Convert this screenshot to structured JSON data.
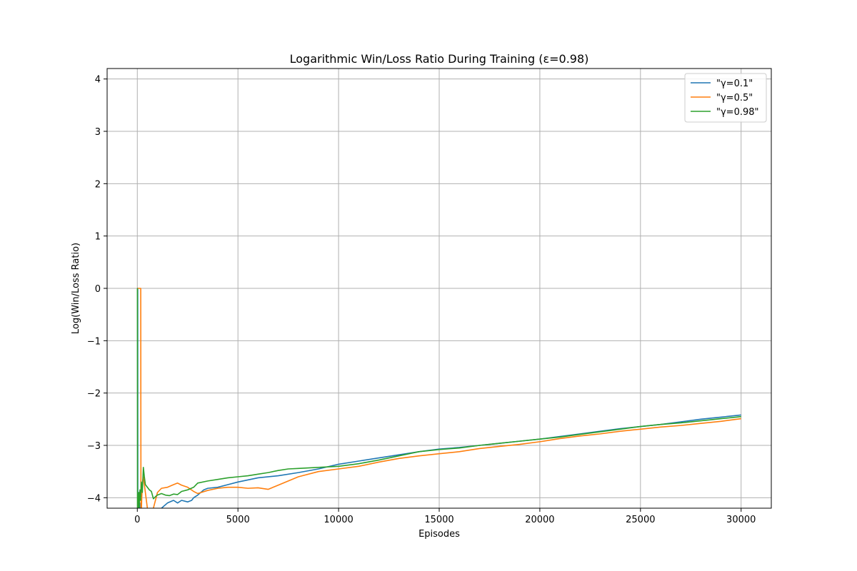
{
  "chart_data": {
    "type": "line",
    "title": "Logarithmic Win/Loss Ratio During Training (ε=0.98)",
    "xlabel": "Episodes",
    "ylabel": "Log(Win/Loss Ratio)",
    "xlim": [
      -1500,
      31500
    ],
    "ylim": [
      -4.2,
      4.2
    ],
    "xticks": [
      0,
      5000,
      10000,
      15000,
      20000,
      25000,
      30000
    ],
    "xtick_labels": [
      "0",
      "5000",
      "10000",
      "15000",
      "20000",
      "25000",
      "30000"
    ],
    "yticks": [
      -4,
      -3,
      -2,
      -1,
      0,
      1,
      2,
      3,
      4
    ],
    "ytick_labels": [
      "−4",
      "−3",
      "−2",
      "−1",
      "0",
      "1",
      "2",
      "3",
      "4"
    ],
    "grid": true,
    "legend_position": "top-right",
    "series": [
      {
        "name": "\"γ=0.1\"",
        "color": "#1f77b4",
        "x": [
          0,
          20,
          25,
          40,
          60,
          80,
          100,
          120,
          150,
          200,
          300,
          500,
          800,
          1000,
          1200,
          1500,
          1800,
          2000,
          2200,
          2500,
          2700,
          2800,
          3000,
          3300,
          3500,
          4000,
          4500,
          5000,
          6000,
          7000,
          8000,
          9000,
          10000,
          11000,
          12000,
          13000,
          14000,
          15000,
          16000,
          17000,
          18000,
          19000,
          20000,
          21000,
          22000,
          23000,
          24000,
          25000,
          26000,
          27000,
          28000,
          29000,
          30000
        ],
        "y": [
          0,
          0,
          -4.3,
          -4.5,
          -4.0,
          -3.9,
          -4.2,
          -4.1,
          -4.35,
          -4.4,
          -4.5,
          -4.6,
          -4.5,
          -4.35,
          -4.2,
          -4.1,
          -4.05,
          -4.1,
          -4.05,
          -4.08,
          -4.05,
          -4.0,
          -3.95,
          -3.85,
          -3.82,
          -3.8,
          -3.75,
          -3.7,
          -3.62,
          -3.58,
          -3.52,
          -3.45,
          -3.36,
          -3.3,
          -3.24,
          -3.18,
          -3.12,
          -3.07,
          -3.04,
          -3.0,
          -2.96,
          -2.92,
          -2.88,
          -2.83,
          -2.78,
          -2.73,
          -2.68,
          -2.64,
          -2.6,
          -2.55,
          -2.5,
          -2.46,
          -2.42
        ]
      },
      {
        "name": "\"γ=0.5\"",
        "color": "#ff7f0e",
        "x": [
          0,
          100,
          110,
          170,
          180,
          190,
          200,
          220,
          260,
          300,
          400,
          500,
          600,
          700,
          800,
          900,
          1000,
          1200,
          1500,
          1800,
          2000,
          2200,
          2500,
          2800,
          3000,
          3500,
          4000,
          4500,
          5000,
          5500,
          6000,
          6500,
          7000,
          8000,
          9000,
          10000,
          11000,
          12000,
          13000,
          14000,
          15000,
          16000,
          17000,
          18000,
          19000,
          20000,
          21000,
          22000,
          23000,
          24000,
          25000,
          26000,
          27000,
          28000,
          29000,
          30000
        ],
        "y": [
          0,
          0,
          0,
          0,
          -4.0,
          -4.5,
          -4.3,
          -4.0,
          -3.7,
          -3.6,
          -3.9,
          -4.2,
          -4.4,
          -4.5,
          -4.2,
          -4.05,
          -3.9,
          -3.82,
          -3.8,
          -3.75,
          -3.72,
          -3.76,
          -3.8,
          -3.88,
          -3.92,
          -3.86,
          -3.82,
          -3.8,
          -3.8,
          -3.82,
          -3.81,
          -3.84,
          -3.76,
          -3.6,
          -3.5,
          -3.45,
          -3.4,
          -3.32,
          -3.25,
          -3.2,
          -3.16,
          -3.12,
          -3.06,
          -3.02,
          -2.98,
          -2.93,
          -2.87,
          -2.82,
          -2.78,
          -2.73,
          -2.69,
          -2.65,
          -2.62,
          -2.58,
          -2.54,
          -2.49
        ]
      },
      {
        "name": "\"γ=0.98\"",
        "color": "#2ca02c",
        "x": [
          0,
          5,
          10,
          30,
          50,
          70,
          90,
          100,
          130,
          160,
          200,
          250,
          300,
          350,
          400,
          500,
          600,
          700,
          800,
          900,
          1000,
          1200,
          1400,
          1600,
          1800,
          2000,
          2200,
          2500,
          2800,
          3000,
          3500,
          4000,
          4500,
          5000,
          5500,
          6000,
          6500,
          7000,
          7500,
          8000,
          9000,
          10000,
          11000,
          12000,
          13000,
          14000,
          15000,
          16000,
          17000,
          18000,
          19000,
          20000,
          21000,
          22000,
          23000,
          24000,
          25000,
          26000,
          27000,
          28000,
          29000,
          30000
        ],
        "y": [
          0,
          0,
          -4.5,
          -4.1,
          -4.3,
          -3.9,
          -4.2,
          -4.1,
          -3.85,
          -4.05,
          -3.7,
          -3.9,
          -3.42,
          -3.6,
          -3.75,
          -3.8,
          -3.85,
          -3.88,
          -4.02,
          -3.98,
          -3.95,
          -3.92,
          -3.95,
          -3.96,
          -3.93,
          -3.94,
          -3.88,
          -3.85,
          -3.8,
          -3.72,
          -3.68,
          -3.65,
          -3.62,
          -3.6,
          -3.58,
          -3.55,
          -3.52,
          -3.48,
          -3.45,
          -3.44,
          -3.42,
          -3.4,
          -3.35,
          -3.28,
          -3.2,
          -3.12,
          -3.08,
          -3.05,
          -3.0,
          -2.96,
          -2.92,
          -2.88,
          -2.84,
          -2.79,
          -2.74,
          -2.69,
          -2.64,
          -2.6,
          -2.57,
          -2.53,
          -2.49,
          -2.45
        ]
      }
    ]
  }
}
